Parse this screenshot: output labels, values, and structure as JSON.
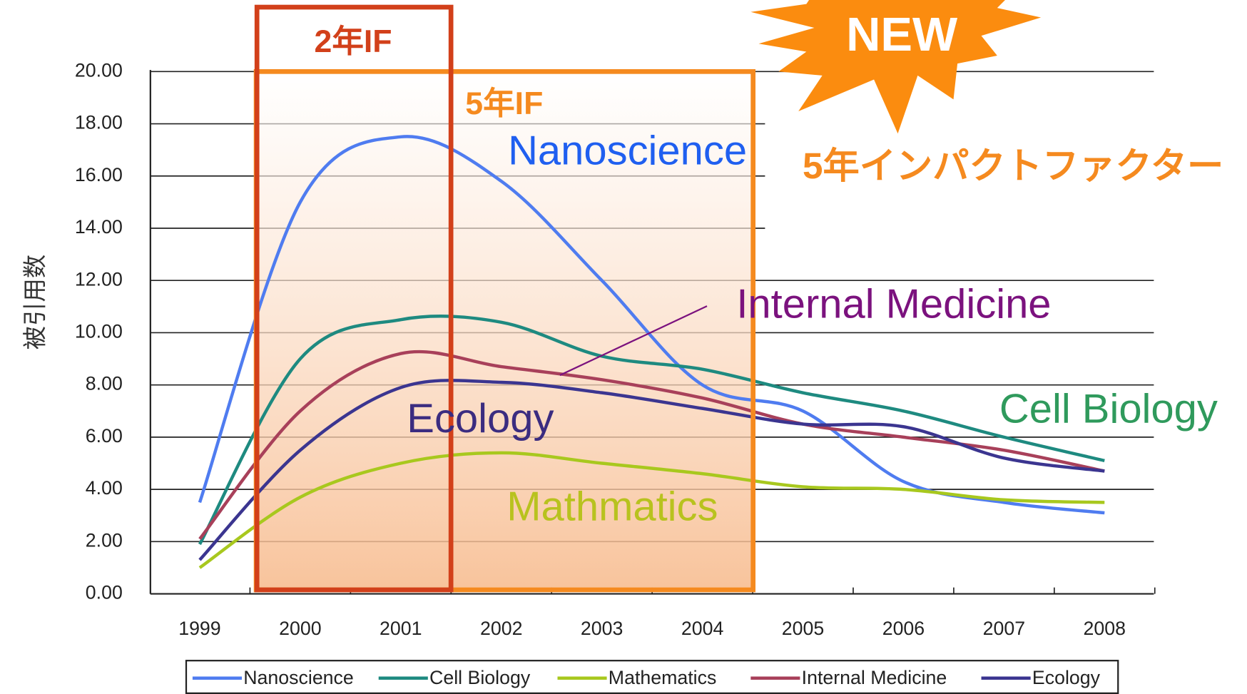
{
  "chart_data": {
    "type": "line",
    "y_label": "被引用数",
    "categories": [
      "1999",
      "2000",
      "2001",
      "2002",
      "2003",
      "2004",
      "2005",
      "2006",
      "2007",
      "2008"
    ],
    "ylim": [
      0,
      20
    ],
    "yticks": [
      {
        "value": 0,
        "label": "0.00"
      },
      {
        "value": 2,
        "label": "2.00"
      },
      {
        "value": 4,
        "label": "4.00"
      },
      {
        "value": 6,
        "label": "6.00"
      },
      {
        "value": 8,
        "label": "8.00"
      },
      {
        "value": 10,
        "label": "10.00"
      },
      {
        "value": 12,
        "label": "12.00"
      },
      {
        "value": 14,
        "label": "14.00"
      },
      {
        "value": 16,
        "label": "16.00"
      },
      {
        "value": 18,
        "label": "18.00"
      },
      {
        "value": 20,
        "label": "20.00"
      }
    ],
    "grid": true,
    "legend": "bottom",
    "series": [
      {
        "name": "Nanoscience",
        "color": "#4f7cf0",
        "values": [
          3.5,
          15.0,
          17.5,
          15.8,
          12.0,
          8.0,
          7.0,
          4.3,
          3.5,
          3.1
        ]
      },
      {
        "name": "Cell Biology",
        "color": "#1e8a80",
        "values": [
          1.9,
          9.0,
          10.5,
          10.4,
          9.1,
          8.6,
          7.7,
          7.0,
          6.0,
          5.1
        ]
      },
      {
        "name": "Mathematics",
        "color": "#a8c81e",
        "values": [
          1.0,
          3.7,
          5.0,
          5.4,
          5.0,
          4.6,
          4.1,
          4.0,
          3.6,
          3.5
        ]
      },
      {
        "name": "Internal Medicine",
        "color": "#a8405a",
        "values": [
          2.1,
          7.0,
          9.2,
          8.7,
          8.2,
          7.5,
          6.5,
          6.0,
          5.5,
          4.7
        ]
      },
      {
        "name": "Ecology",
        "color": "#3b3590",
        "values": [
          1.3,
          5.5,
          7.9,
          8.1,
          7.7,
          7.1,
          6.5,
          6.4,
          5.2,
          4.7
        ]
      }
    ],
    "annotations": [
      {
        "text": "2年IF"
      },
      {
        "text": "5年IF"
      },
      {
        "text": "NEW"
      },
      {
        "text": "5年インパクトファクター"
      },
      {
        "text": "Nanoscience"
      },
      {
        "text": "Internal Medicine"
      },
      {
        "text": "Cell Biology"
      },
      {
        "text": "Ecology"
      },
      {
        "text": "Mathmatics"
      }
    ]
  }
}
